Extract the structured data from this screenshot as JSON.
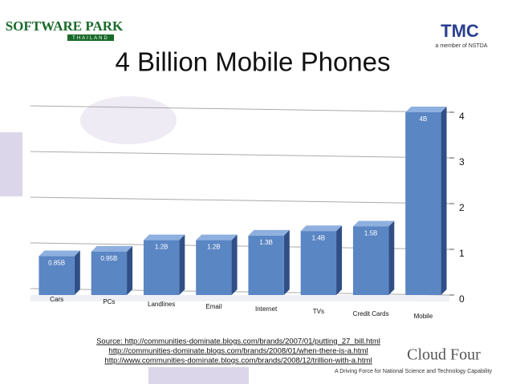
{
  "header": {
    "logo_left": "SOFTWARE PARK",
    "logo_left_sub": "THAILAND",
    "logo_right": "TMC",
    "logo_right_sub": "a member of NSTDA"
  },
  "chart_data": {
    "type": "bar",
    "title": "4 Billion Mobile Phones",
    "categories": [
      "Cars",
      "PCs",
      "Landlines",
      "Email",
      "Internet",
      "TVs",
      "Credit Cards",
      "Mobile"
    ],
    "values": [
      0.85,
      0.95,
      1.2,
      1.2,
      1.3,
      1.4,
      1.5,
      4
    ],
    "value_labels": [
      "0.85B",
      "0.95B",
      "1.2B",
      "1.2B",
      "1.3B",
      "1.4B",
      "1.5B",
      "4B"
    ],
    "color": "#5b86c4",
    "ylim": [
      0,
      4
    ],
    "yticks": [
      0,
      1,
      2,
      3,
      4
    ],
    "grid": true
  },
  "footer": {
    "sources": [
      "Source: http://communities-dominate.blogs.com/brands/2007/01/putting_27_bill.html",
      "http://communities-dominate.blogs.com/brands/2008/01/when-there-is-a.html",
      "http://www.communities-dominate.blogs.com/brands/2008/12/trillion-with-a.html"
    ],
    "brand": "Cloud Four",
    "tagline": "A Driving Force for National Science and Technology Capability"
  }
}
